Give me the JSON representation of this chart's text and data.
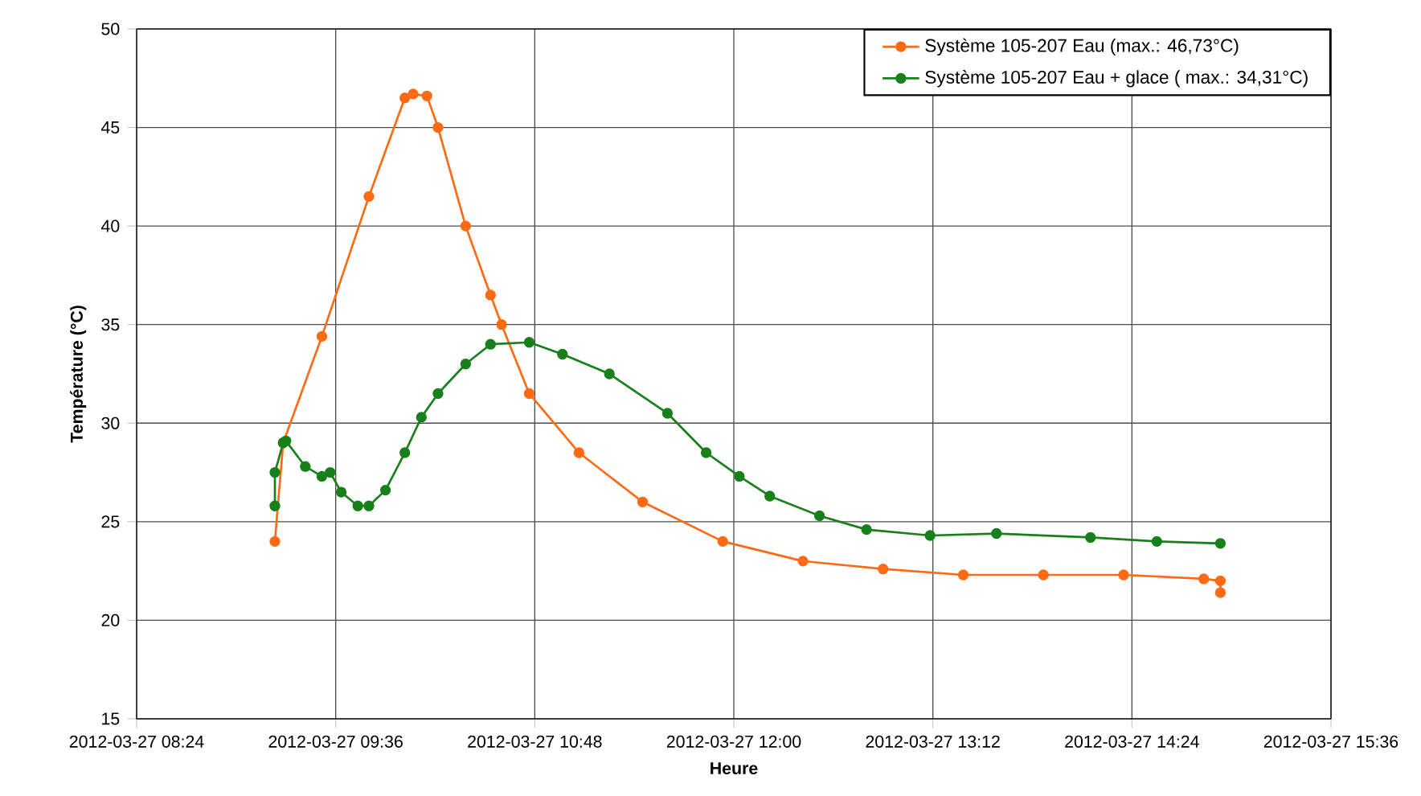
{
  "chart_data": {
    "type": "line",
    "xlabel": "Heure",
    "ylabel": "Température (°C)",
    "xlim": [
      "2012-03-27T08:24",
      "2012-03-27T15:36"
    ],
    "xticks": [
      {
        "value": "2012-03-27T08:24",
        "label": "2012-03-27 08:24"
      },
      {
        "value": "2012-03-27T09:36",
        "label": "2012-03-27 09:36"
      },
      {
        "value": "2012-03-27T10:48",
        "label": "2012-03-27 10:48"
      },
      {
        "value": "2012-03-27T12:00",
        "label": "2012-03-27 12:00"
      },
      {
        "value": "2012-03-27T13:12",
        "label": "2012-03-27 13:12"
      },
      {
        "value": "2012-03-27T14:24",
        "label": "2012-03-27 14:24"
      },
      {
        "value": "2012-03-27T15:36",
        "label": "2012-03-27 15:36"
      }
    ],
    "ylim": [
      15,
      50
    ],
    "yticks": [
      15,
      20,
      25,
      30,
      35,
      40,
      45,
      50
    ],
    "grid": true,
    "legend": "top right",
    "marker": "circle",
    "line_style": "solid",
    "series": [
      {
        "name": "Système 105-207 Eau (max.: 46,73°C)",
        "color": "#ff6a13",
        "x": [
          "2012-03-27T09:14",
          "2012-03-27T09:17",
          "2012-03-27T09:31",
          "2012-03-27T09:48",
          "2012-03-27T10:01",
          "2012-03-27T10:04",
          "2012-03-27T10:09",
          "2012-03-27T10:13",
          "2012-03-27T10:23",
          "2012-03-27T10:32",
          "2012-03-27T10:36",
          "2012-03-27T10:46",
          "2012-03-27T11:04",
          "2012-03-27T11:27",
          "2012-03-27T11:56",
          "2012-03-27T12:25",
          "2012-03-27T12:54",
          "2012-03-27T13:23",
          "2012-03-27T13:52",
          "2012-03-27T14:21",
          "2012-03-27T14:50",
          "2012-03-27T14:56",
          "2012-03-27T14:56"
        ],
        "values": [
          24.0,
          29.0,
          34.4,
          41.5,
          46.5,
          46.7,
          46.6,
          45.0,
          40.0,
          36.5,
          35.0,
          31.5,
          28.5,
          26.0,
          24.0,
          23.0,
          22.6,
          22.3,
          22.3,
          22.3,
          22.1,
          22.0,
          21.4
        ]
      },
      {
        "name": "Système 105-207 Eau + glace ( max.: 34,31°C)",
        "color": "#17801a",
        "x": [
          "2012-03-27T09:14",
          "2012-03-27T09:14",
          "2012-03-27T09:17",
          "2012-03-27T09:18",
          "2012-03-27T09:25",
          "2012-03-27T09:31",
          "2012-03-27T09:34",
          "2012-03-27T09:38",
          "2012-03-27T09:44",
          "2012-03-27T09:48",
          "2012-03-27T09:54",
          "2012-03-27T10:01",
          "2012-03-27T10:07",
          "2012-03-27T10:13",
          "2012-03-27T10:23",
          "2012-03-27T10:32",
          "2012-03-27T10:46",
          "2012-03-27T10:58",
          "2012-03-27T11:15",
          "2012-03-27T11:36",
          "2012-03-27T11:50",
          "2012-03-27T12:02",
          "2012-03-27T12:13",
          "2012-03-27T12:31",
          "2012-03-27T12:48",
          "2012-03-27T13:11",
          "2012-03-27T13:35",
          "2012-03-27T14:09",
          "2012-03-27T14:33",
          "2012-03-27T14:56"
        ],
        "values": [
          25.8,
          27.5,
          29.0,
          29.1,
          27.8,
          27.3,
          27.5,
          26.5,
          25.8,
          25.8,
          26.6,
          28.5,
          30.3,
          31.5,
          33.0,
          34.0,
          34.1,
          33.5,
          32.5,
          30.5,
          28.5,
          27.3,
          26.3,
          25.3,
          24.6,
          24.3,
          24.4,
          24.2,
          24.0,
          23.9
        ]
      }
    ]
  }
}
